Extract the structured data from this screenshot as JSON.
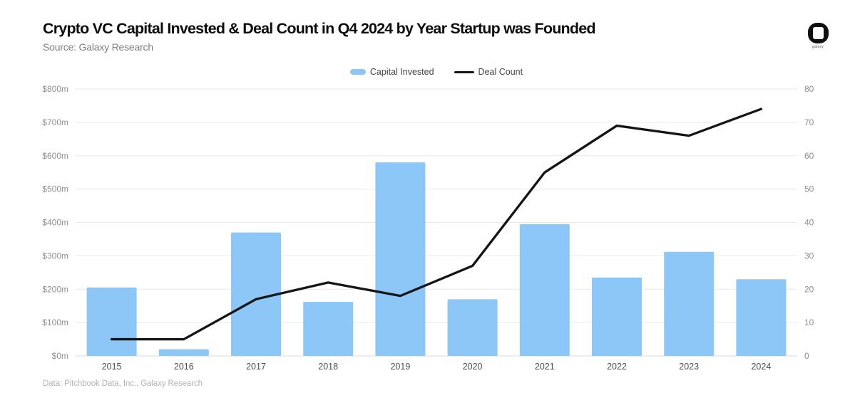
{
  "header": {
    "title": "Crypto VC Capital Invested & Deal Count in Q4 2024 by Year Startup was Founded",
    "source": "Source: Galaxy Research",
    "logo_brand": "galaxy"
  },
  "legend": {
    "items": [
      {
        "label": "Capital Invested",
        "swatch": "bar",
        "color": "#8DC7F8"
      },
      {
        "label": "Deal Count",
        "swatch": "line",
        "color": "#151515"
      }
    ]
  },
  "footnote": "Data: Pitchbook Data, Inc., Galaxy Research",
  "chart_data": {
    "type": "combo-bar-line",
    "title": "Crypto VC Capital Invested & Deal Count in Q4 2024 by Year Startup was Founded",
    "categories": [
      "2015",
      "2016",
      "2017",
      "2018",
      "2019",
      "2020",
      "2021",
      "2022",
      "2023",
      "2024"
    ],
    "series": [
      {
        "name": "Capital Invested",
        "type": "bar",
        "axis": "left",
        "color": "#8DC7F8",
        "values": [
          205,
          20,
          370,
          162,
          580,
          170,
          395,
          235,
          312,
          230
        ]
      },
      {
        "name": "Deal Count",
        "type": "line",
        "axis": "right",
        "color": "#151515",
        "values": [
          5,
          5,
          17,
          22,
          18,
          27,
          55,
          69,
          66,
          74
        ]
      }
    ],
    "left_axis": {
      "title": "",
      "unit": "$m",
      "min": 0,
      "max": 800,
      "step": 100,
      "ticks": [
        "$0m",
        "$100m",
        "$200m",
        "$300m",
        "$400m",
        "$500m",
        "$600m",
        "$700m",
        "$800m"
      ]
    },
    "right_axis": {
      "title": "",
      "min": 0,
      "max": 80,
      "step": 10,
      "ticks": [
        "0",
        "10",
        "20",
        "30",
        "40",
        "50",
        "60",
        "70",
        "80"
      ]
    },
    "grid": true,
    "legend_position": "top-center",
    "colors": {
      "grid": "#e9e9e9",
      "baseline": "#d9d9d9",
      "axis_text": "#8f8f8f",
      "category_text": "#4d4d4d"
    }
  }
}
